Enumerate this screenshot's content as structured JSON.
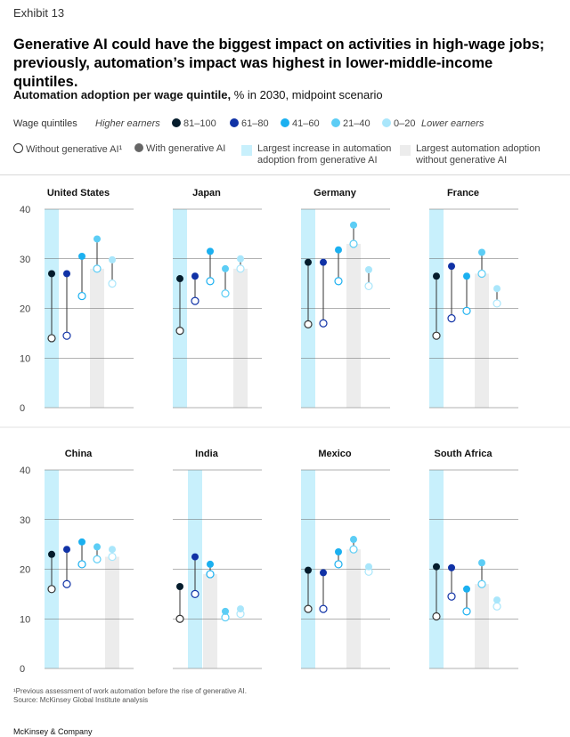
{
  "exhibit": "Exhibit 13",
  "title": "Generative AI could have the biggest impact on activities in high-wage jobs; previously, automation’s impact was highest in lower-middle-income quintiles.",
  "subtitle_bold": "Automation adoption per wage quintile,",
  "subtitle_rest": " % in 2030, midpoint scenario",
  "legend": {
    "wage_quintiles": "Wage quintiles",
    "higher": "Higher earners",
    "lower": "Lower earners",
    "quintiles": [
      {
        "label": "81–100",
        "color": "#051c2c"
      },
      {
        "label": "61–80",
        "color": "#1032a6"
      },
      {
        "label": "41–60",
        "color": "#1bb0f0"
      },
      {
        "label": "21–40",
        "color": "#5ccdf5"
      },
      {
        "label": "0–20",
        "color": "#a9e6fb"
      }
    ],
    "without": "Without generative AI¹",
    "with": "With generative AI",
    "largest_increase": "Largest increase in automation adoption from generative AI",
    "largest_without": "Largest automation adoption without generative AI",
    "highlight_blue": "#c8f0fc",
    "highlight_gray": "#ececec"
  },
  "footnote": "¹Previous assessment of work automation before the rise of generative AI.",
  "source": "Source: McKinsey Global Institute analysis",
  "brand": "McKinsey & Company",
  "chart_data": {
    "type": "scatter",
    "ylim": [
      0,
      40
    ],
    "yticks": [
      0,
      10,
      20,
      30,
      40
    ],
    "series_order": [
      "81–100",
      "61–80",
      "41–60",
      "21–40",
      "0–20"
    ],
    "panels": [
      {
        "country": "United States",
        "without": [
          14,
          14.5,
          22.5,
          28,
          25
        ],
        "with": [
          27,
          27,
          30.5,
          34,
          29.8
        ],
        "largest_increase": 0,
        "largest_without": 3
      },
      {
        "country": "Japan",
        "without": [
          15.5,
          21.5,
          25.5,
          23,
          28
        ],
        "with": [
          26,
          26.5,
          31.5,
          28,
          30
        ],
        "largest_increase": 0,
        "largest_without": 4
      },
      {
        "country": "Germany",
        "without": [
          16.8,
          17,
          25.5,
          33,
          24.5
        ],
        "with": [
          29.3,
          29.3,
          31.8,
          36.8,
          27.8
        ],
        "largest_increase": 0,
        "largest_without": 3
      },
      {
        "country": "France",
        "without": [
          14.5,
          18,
          19.5,
          27,
          21
        ],
        "with": [
          26.5,
          28.5,
          26.5,
          31.3,
          24
        ],
        "largest_increase": 0,
        "largest_without": 3
      },
      {
        "country": "China",
        "without": [
          16,
          17,
          21,
          22,
          22.5
        ],
        "with": [
          23,
          24,
          25.5,
          24.5,
          24
        ],
        "largest_increase": 0,
        "largest_without": 4
      },
      {
        "country": "India",
        "without": [
          10,
          15,
          19,
          10.3,
          11
        ],
        "with": [
          16.5,
          22.5,
          21,
          11.5,
          12
        ],
        "largest_increase": 1,
        "largest_without": 2
      },
      {
        "country": "Mexico",
        "without": [
          12,
          12,
          21,
          24,
          19.5
        ],
        "with": [
          19.8,
          19.3,
          23.5,
          26,
          20.5
        ],
        "largest_increase": 0,
        "largest_without": 3
      },
      {
        "country": "South Africa",
        "without": [
          10.5,
          14.5,
          11.5,
          17,
          12.5
        ],
        "with": [
          20.5,
          20.3,
          16,
          21.3,
          13.8
        ],
        "largest_increase": 0,
        "largest_without": 3
      }
    ]
  }
}
